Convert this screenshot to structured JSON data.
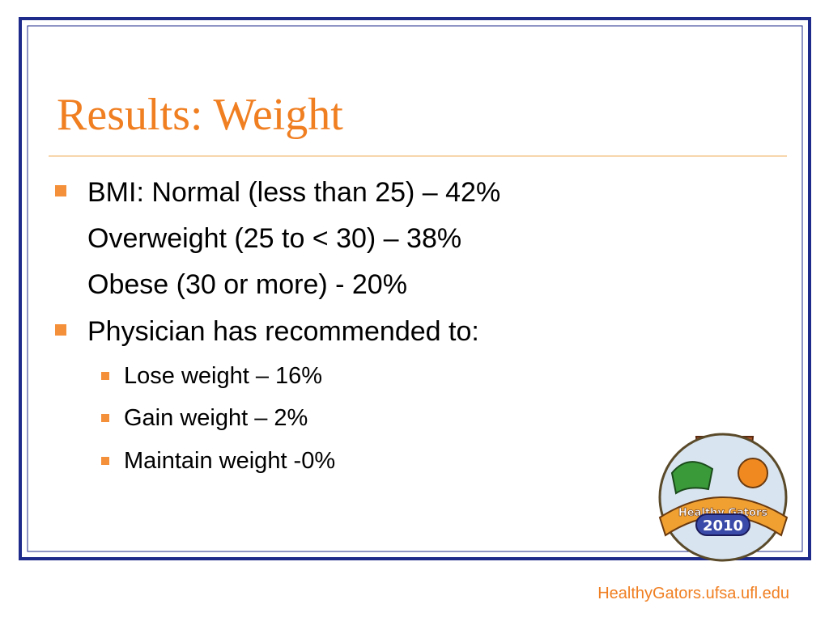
{
  "slide": {
    "title": "Results: Weight",
    "bullets": [
      {
        "lines": [
          "BMI: Normal (less than 25) – 42%",
          "Overweight (25 to < 30) – 38%",
          "Obese (30 or more) - 20%"
        ]
      },
      {
        "lines": [
          "Physician has recommended to:"
        ],
        "sub_bullets": [
          "Lose weight – 16%",
          "Gain weight – 2%",
          "Maintain weight -0%"
        ]
      }
    ],
    "logo": {
      "banner": "Healthy Gators",
      "year": "2010"
    },
    "footer": "HealthyGators.ufsa.ufl.edu"
  }
}
